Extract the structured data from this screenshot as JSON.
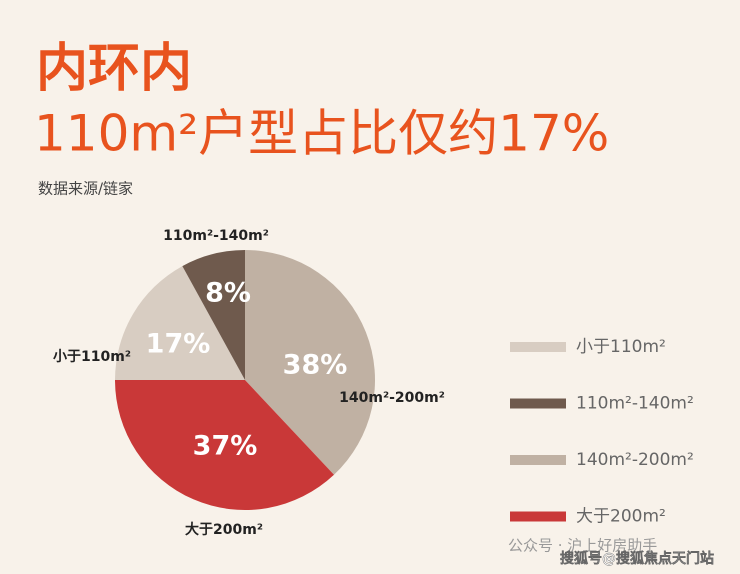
{
  "chart_data": {
    "type": "pie",
    "title": "内环内",
    "subtitle": "110m²户型占比仅约17%",
    "source": "数据来源/链家",
    "categories": [
      "小于110m²",
      "110m²-140m²",
      "140m²-200m²",
      "大于200m²"
    ],
    "values": [
      17,
      8,
      38,
      37
    ],
    "value_labels": [
      "17%",
      "8%",
      "38%",
      "37%"
    ],
    "colors": [
      "#d8cdc2",
      "#6f5a4d",
      "#c0b1a3",
      "#c93838"
    ],
    "legend": "right",
    "watermark": [
      "公众号 · 沪上好房助手",
      "搜狐号@搜狐焦点天门站"
    ]
  }
}
